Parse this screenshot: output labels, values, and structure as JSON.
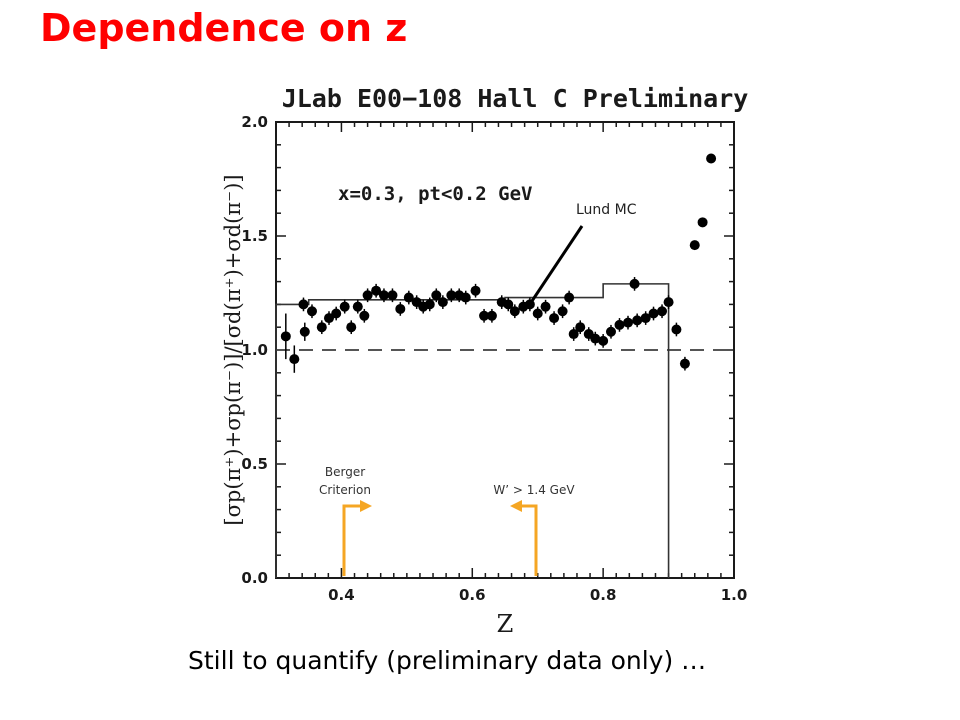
{
  "slide": {
    "title": "Dependence on z",
    "caption": "Still to quantify (preliminary data only) …",
    "title_color": "#ff0000"
  },
  "chart_data": {
    "type": "scatter",
    "title": "JLab E00−108 Hall C Preliminary",
    "xlabel": "Z",
    "ylabel": "[σp(π⁺)+σp(π⁻)]/[σd(π⁺)+σd(π⁻)]",
    "xlim": [
      0.3,
      1.0
    ],
    "ylim": [
      0.0,
      2.0
    ],
    "xticks": [
      "0.4",
      "0.6",
      "0.8",
      "1.0"
    ],
    "yticks": [
      "0.0",
      "0.5",
      "1.0",
      "1.5",
      "2.0"
    ],
    "grid": false,
    "reference_line": {
      "y": 1.0,
      "style": "dashed"
    },
    "annotations": {
      "kinematics": "x=0.3, pt<0.2 GeV",
      "lund": "Lund MC",
      "berger_line1": "Berger",
      "berger_line2": "Criterion",
      "wprime": "W’ > 1.4 GeV"
    },
    "arrow_color": "#f5a623",
    "series": [
      {
        "points": [
          [
            0.315,
            1.06,
            0.1
          ],
          [
            0.328,
            0.96,
            0.06
          ],
          [
            0.342,
            1.2,
            0.03
          ],
          [
            0.344,
            1.08,
            0.04
          ],
          [
            0.355,
            1.17,
            0.03
          ],
          [
            0.37,
            1.1,
            0.03
          ],
          [
            0.381,
            1.14,
            0.03
          ],
          [
            0.392,
            1.16,
            0.03
          ],
          [
            0.405,
            1.19,
            0.03
          ],
          [
            0.415,
            1.1,
            0.03
          ],
          [
            0.425,
            1.19,
            0.03
          ],
          [
            0.435,
            1.15,
            0.03
          ],
          [
            0.44,
            1.24,
            0.03
          ],
          [
            0.453,
            1.26,
            0.03
          ],
          [
            0.465,
            1.24,
            0.03
          ],
          [
            0.478,
            1.24,
            0.03
          ],
          [
            0.49,
            1.18,
            0.03
          ],
          [
            0.503,
            1.23,
            0.03
          ],
          [
            0.515,
            1.21,
            0.03
          ],
          [
            0.525,
            1.19,
            0.03
          ],
          [
            0.535,
            1.2,
            0.03
          ],
          [
            0.545,
            1.24,
            0.03
          ],
          [
            0.555,
            1.21,
            0.03
          ],
          [
            0.568,
            1.24,
            0.03
          ],
          [
            0.58,
            1.24,
            0.03
          ],
          [
            0.59,
            1.23,
            0.03
          ],
          [
            0.605,
            1.26,
            0.03
          ],
          [
            0.618,
            1.15,
            0.03
          ],
          [
            0.63,
            1.15,
            0.03
          ],
          [
            0.645,
            1.21,
            0.03
          ],
          [
            0.655,
            1.2,
            0.03
          ],
          [
            0.665,
            1.17,
            0.03
          ],
          [
            0.678,
            1.19,
            0.03
          ],
          [
            0.688,
            1.2,
            0.03
          ],
          [
            0.7,
            1.16,
            0.03
          ],
          [
            0.712,
            1.19,
            0.03
          ],
          [
            0.725,
            1.14,
            0.03
          ],
          [
            0.738,
            1.17,
            0.03
          ],
          [
            0.748,
            1.23,
            0.03
          ],
          [
            0.755,
            1.07,
            0.03
          ],
          [
            0.765,
            1.1,
            0.03
          ],
          [
            0.778,
            1.07,
            0.03
          ],
          [
            0.788,
            1.05,
            0.03
          ],
          [
            0.8,
            1.04,
            0.03
          ],
          [
            0.812,
            1.08,
            0.03
          ],
          [
            0.825,
            1.11,
            0.03
          ],
          [
            0.838,
            1.12,
            0.03
          ],
          [
            0.848,
            1.29,
            0.03
          ],
          [
            0.852,
            1.13,
            0.03
          ],
          [
            0.865,
            1.14,
            0.03
          ],
          [
            0.877,
            1.16,
            0.03
          ],
          [
            0.89,
            1.17,
            0.03
          ],
          [
            0.9,
            1.21,
            0.03
          ],
          [
            0.912,
            1.09,
            0.03
          ],
          [
            0.925,
            0.94,
            0.03
          ],
          [
            0.94,
            1.46,
            0.02
          ],
          [
            0.952,
            1.56,
            0.02
          ],
          [
            0.965,
            1.84,
            0.02
          ]
        ]
      }
    ],
    "histogram": [
      [
        0.3,
        0.3,
        1.2
      ],
      [
        0.3,
        0.35,
        1.2
      ],
      [
        0.35,
        0.65,
        1.22
      ],
      [
        0.65,
        0.8,
        1.23
      ],
      [
        0.8,
        0.9,
        1.29
      ],
      [
        0.9,
        0.9,
        0.0
      ]
    ],
    "histogram_steps": [
      [
        0.3,
        1.2
      ],
      [
        0.35,
        1.22
      ],
      [
        0.65,
        1.23
      ],
      [
        0.8,
        1.29
      ],
      [
        0.9,
        0.0
      ]
    ]
  }
}
